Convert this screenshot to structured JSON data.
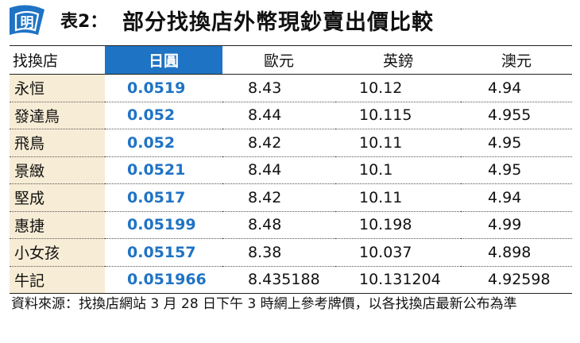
{
  "title": {
    "logo_char": "明",
    "prefix": "表2：",
    "main": "部分找換店外幣現鈔賣出價比較"
  },
  "colors": {
    "accent_blue": "#1f73c4",
    "store_column_bg": "#f7ecd5"
  },
  "table": {
    "headers": [
      "找換店",
      "日圓",
      "歐元",
      "英鎊",
      "澳元"
    ],
    "rows": [
      {
        "store": "永恒",
        "jpy": "0.0519",
        "eur": "8.43",
        "gbp": "10.12",
        "aud": "4.94"
      },
      {
        "store": "發達鳥",
        "jpy": "0.052",
        "eur": "8.44",
        "gbp": "10.115",
        "aud": "4.955"
      },
      {
        "store": "飛鳥",
        "jpy": "0.052",
        "eur": "8.42",
        "gbp": "10.11",
        "aud": "4.95"
      },
      {
        "store": "景緻",
        "jpy": "0.0521",
        "eur": "8.44",
        "gbp": "10.1",
        "aud": "4.95"
      },
      {
        "store": "堅成",
        "jpy": "0.0517",
        "eur": "8.42",
        "gbp": "10.11",
        "aud": "4.94"
      },
      {
        "store": "惠捷",
        "jpy": "0.05199",
        "eur": "8.48",
        "gbp": "10.198",
        "aud": "4.99"
      },
      {
        "store": "小女孩",
        "jpy": "0.05157",
        "eur": "8.38",
        "gbp": "10.037",
        "aud": "4.898"
      },
      {
        "store": "牛記",
        "jpy": "0.051966",
        "eur": "8.435188",
        "gbp": "10.131204",
        "aud": "4.92598"
      }
    ]
  },
  "footnote": "資料來源：找換店網站 3 月 28 日下午 3 時網上參考牌價，以各找換店最新公布為準"
}
